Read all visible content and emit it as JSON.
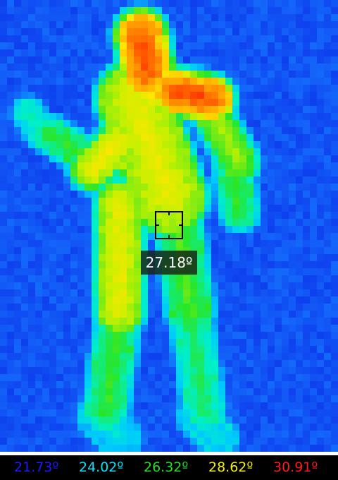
{
  "spot_measurement": {
    "value": "27.18º"
  },
  "temperature_scale": [
    {
      "label": "21.73º",
      "color": "#1a1aff"
    },
    {
      "label": "24.02º",
      "color": "#00e5ff"
    },
    {
      "label": "26.32º",
      "color": "#22e022"
    },
    {
      "label": "28.62º",
      "color": "#f2f200"
    },
    {
      "label": "30.91º",
      "color": "#ff1a1a"
    }
  ],
  "palette": {
    "cold": "#0a3cf0",
    "cool": "#00c8ff",
    "mid": "#30e020",
    "warm": "#f0f000",
    "hot": "#ff2000"
  }
}
